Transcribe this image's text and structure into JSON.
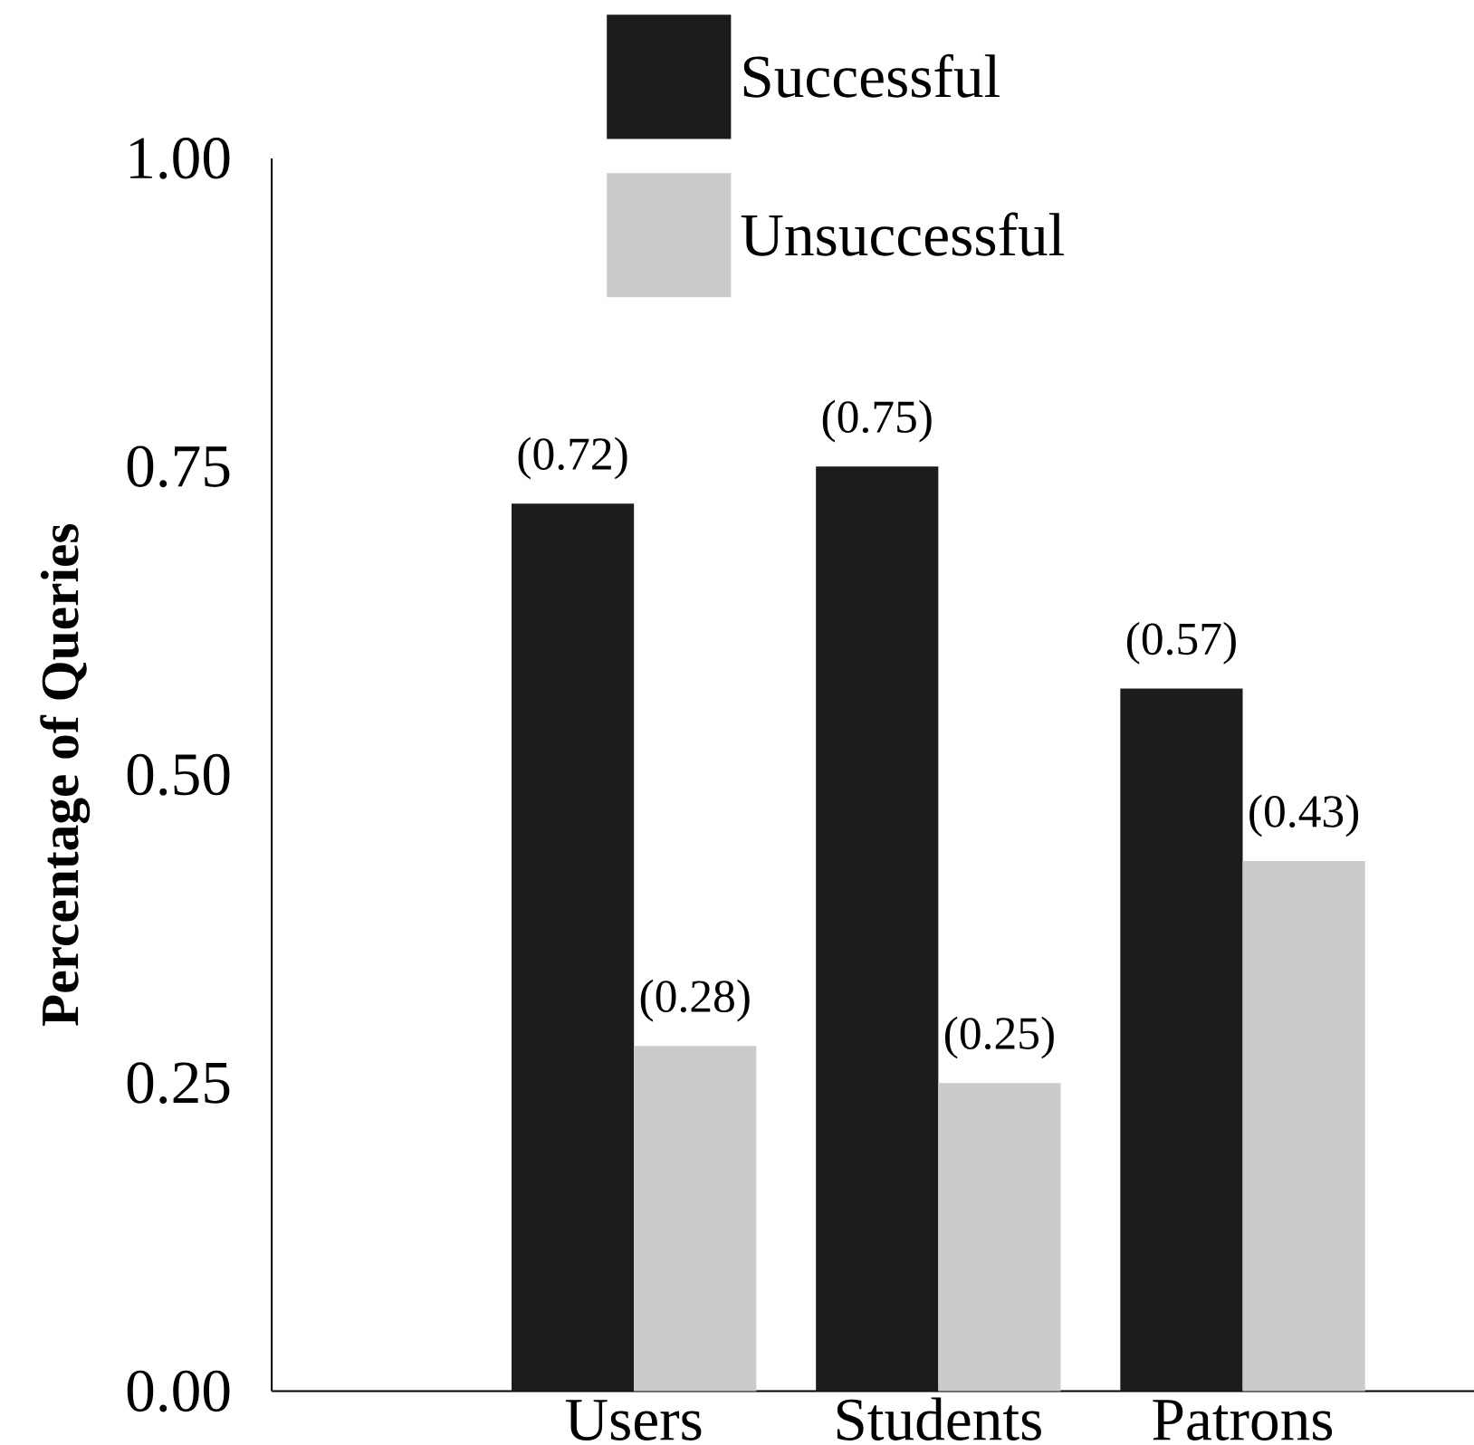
{
  "chart_data": {
    "type": "bar",
    "ylabel": "Percentage of Queries",
    "categories": [
      "Users",
      "Students",
      "Patrons"
    ],
    "series": [
      {
        "name": "Successful",
        "color": "#1c1c1c",
        "values": [
          0.72,
          0.75,
          0.57
        ],
        "value_labels": [
          "(0.72)",
          "(0.75)",
          "(0.57)"
        ]
      },
      {
        "name": "Unsuccessful",
        "color": "#cbcbcb",
        "values": [
          0.28,
          0.25,
          0.43
        ],
        "value_labels": [
          "(0.28)",
          "(0.25)",
          "(0.43)"
        ]
      }
    ],
    "ylim": [
      0,
      1
    ],
    "yticks": [
      {
        "value": 0,
        "label": "0.00"
      },
      {
        "value": 0.25,
        "label": "0.25"
      },
      {
        "value": 0.5,
        "label": "0.50"
      },
      {
        "value": 0.75,
        "label": "0.75"
      },
      {
        "value": 1,
        "label": "1.00"
      }
    ],
    "legend": "top"
  }
}
